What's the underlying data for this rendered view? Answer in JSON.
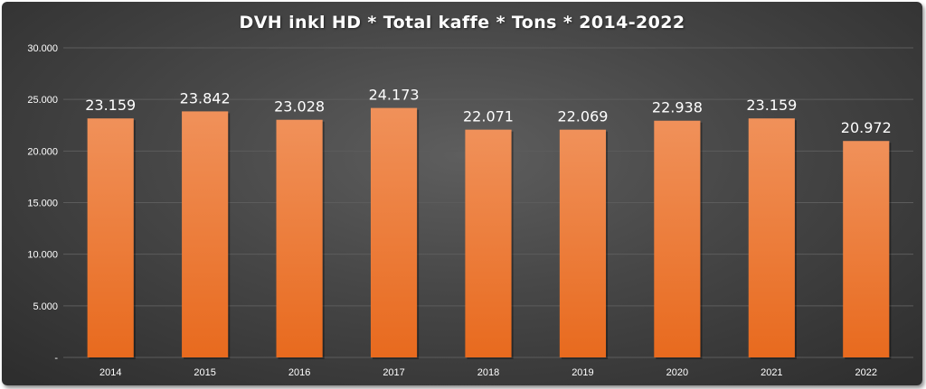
{
  "chart_data": {
    "type": "bar",
    "title": "DVH inkl HD * Total kaffe * Tons * 2014-2022",
    "xlabel": "",
    "ylabel": "",
    "categories": [
      "2014",
      "2015",
      "2016",
      "2017",
      "2018",
      "2019",
      "2020",
      "2021",
      "2022"
    ],
    "values": [
      23159,
      23842,
      23028,
      24173,
      22071,
      22069,
      22938,
      23159,
      20972
    ],
    "data_labels": [
      "23.159",
      "23.842",
      "23.028",
      "24.173",
      "22.071",
      "22.069",
      "22.938",
      "23.159",
      "20.972"
    ],
    "ylim": [
      0,
      30000
    ],
    "y_ticks": [
      0,
      5000,
      10000,
      15000,
      20000,
      25000,
      30000
    ],
    "y_tick_labels": [
      "-",
      "5.000",
      "10.000",
      "15.000",
      "20.000",
      "25.000",
      "30.000"
    ],
    "grid": true,
    "legend": "none",
    "colors": {
      "bar_top": "#f0915a",
      "bar_bottom": "#e86a1e",
      "background": "#474747",
      "grid": "#5c5c5c",
      "text": "#ffffff"
    }
  }
}
